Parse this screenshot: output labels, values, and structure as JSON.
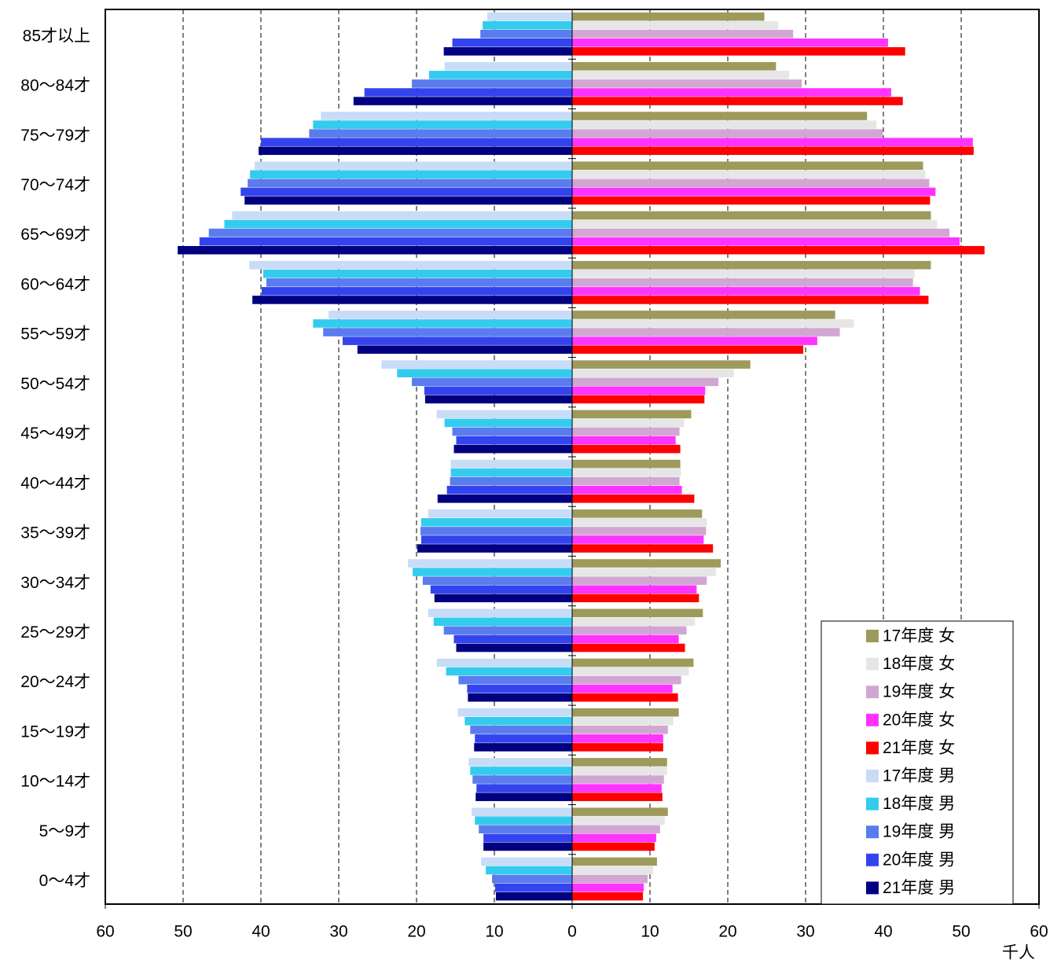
{
  "chart_data": {
    "type": "bar",
    "orientation": "horizontal",
    "x_label": "千人",
    "categories": [
      "85才以上",
      "80～84才",
      "75～79才",
      "70～74才",
      "65～69才",
      "60～64才",
      "55～59才",
      "50～54才",
      "45～49才",
      "40～44才",
      "35～39才",
      "30～34才",
      "25～29才",
      "20～24才",
      "15～19才",
      "10～14才",
      "5～9才",
      "0～4才"
    ],
    "series": [
      {
        "name": "17年度 女",
        "color": "#9e9a5c",
        "values": [
          24.7,
          26.2,
          37.9,
          45.1,
          46.1,
          46.1,
          33.8,
          22.9,
          15.3,
          13.9,
          16.7,
          19.1,
          16.8,
          15.6,
          13.7,
          12.2,
          12.3,
          10.9
        ]
      },
      {
        "name": "18年度 女",
        "color": "#e6e6e6",
        "values": [
          26.5,
          27.9,
          39.1,
          45.4,
          46.9,
          44.0,
          36.2,
          20.8,
          14.4,
          14.0,
          17.3,
          18.5,
          15.8,
          15.0,
          13.0,
          12.2,
          11.9,
          10.4
        ]
      },
      {
        "name": "19年度 女",
        "color": "#d2a6d2",
        "values": [
          28.4,
          29.5,
          39.9,
          45.9,
          48.5,
          43.8,
          34.4,
          18.8,
          13.8,
          13.8,
          17.2,
          17.3,
          14.7,
          14.0,
          12.3,
          11.8,
          11.3,
          9.7
        ]
      },
      {
        "name": "20年度 女",
        "color": "#ff33ff",
        "values": [
          40.6,
          41.0,
          51.5,
          46.7,
          49.8,
          44.7,
          31.5,
          17.1,
          13.3,
          14.1,
          16.9,
          16.0,
          13.7,
          12.9,
          11.7,
          11.5,
          10.8,
          9.2
        ]
      },
      {
        "name": "21年度 女",
        "color": "#ff0000",
        "values": [
          42.8,
          42.5,
          51.6,
          46.0,
          53.0,
          45.8,
          29.7,
          17.0,
          13.9,
          15.7,
          18.1,
          16.3,
          14.5,
          13.6,
          11.7,
          11.6,
          10.6,
          9.1
        ]
      },
      {
        "name": "17年度 男",
        "color": "#c8dcf8",
        "values": [
          -10.9,
          -16.4,
          -32.3,
          -40.8,
          -43.7,
          -41.5,
          -31.3,
          -24.5,
          -17.4,
          -15.6,
          -18.5,
          -21.1,
          -18.5,
          -17.4,
          -14.7,
          -13.3,
          -12.9,
          -11.7
        ]
      },
      {
        "name": "18年度 男",
        "color": "#33ccee",
        "values": [
          -11.5,
          -18.4,
          -33.3,
          -41.4,
          -44.7,
          -39.7,
          -33.3,
          -22.5,
          -16.4,
          -15.6,
          -19.4,
          -20.5,
          -17.8,
          -16.2,
          -13.8,
          -13.1,
          -12.5,
          -11.1
        ]
      },
      {
        "name": "19年度 男",
        "color": "#5a7cee",
        "values": [
          -11.8,
          -20.6,
          -33.8,
          -41.7,
          -46.7,
          -39.3,
          -32.0,
          -20.6,
          -15.4,
          -15.7,
          -19.5,
          -19.2,
          -16.5,
          -14.6,
          -13.1,
          -12.8,
          -12.0,
          -10.3
        ]
      },
      {
        "name": "20年度 男",
        "color": "#3344ee",
        "values": [
          -15.4,
          -26.7,
          -40.0,
          -42.6,
          -47.9,
          -39.9,
          -29.5,
          -19.0,
          -14.9,
          -16.1,
          -19.4,
          -18.2,
          -15.2,
          -13.5,
          -12.5,
          -12.3,
          -11.4,
          -9.9
        ]
      },
      {
        "name": "21年度 男",
        "color": "#000080",
        "values": [
          -16.5,
          -28.1,
          -40.3,
          -42.1,
          -50.7,
          -41.1,
          -27.6,
          -18.9,
          -15.2,
          -17.3,
          -19.9,
          -17.7,
          -14.9,
          -13.4,
          -12.6,
          -12.4,
          -11.4,
          -9.8
        ]
      }
    ],
    "xlim": [
      -60,
      60
    ],
    "xticks": [
      {
        "value": -60,
        "label": "60"
      },
      {
        "value": -50,
        "label": "50"
      },
      {
        "value": -40,
        "label": "40"
      },
      {
        "value": -30,
        "label": "30"
      },
      {
        "value": -20,
        "label": "20"
      },
      {
        "value": -10,
        "label": "10"
      },
      0,
      10,
      20,
      30,
      40,
      50,
      60
    ],
    "grid": true,
    "legend": "lower right"
  }
}
